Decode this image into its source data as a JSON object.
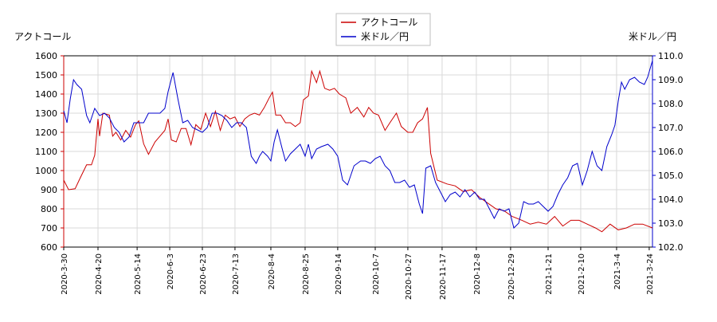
{
  "chart_data": {
    "type": "line",
    "left_axis_label": "アクトコール",
    "right_axis_label": "米ドル／円",
    "legend_position": "top-center",
    "grid": true,
    "colors": {
      "series1": "#cc0000",
      "series2": "#0000cc"
    },
    "left_ylim": [
      600,
      1600
    ],
    "left_yticks": [
      "600",
      "700",
      "800",
      "900",
      "1000",
      "1100",
      "1200",
      "1300",
      "1400",
      "1500",
      "1600"
    ],
    "right_ylim": [
      102.0,
      110.0
    ],
    "right_yticks": [
      "102.0",
      "103.0",
      "104.0",
      "105.0",
      "106.0",
      "107.0",
      "108.0",
      "109.0",
      "110.0"
    ],
    "xlim": [
      "2020-03-30",
      "2021-03-26"
    ],
    "x_ticks": [
      "2020-3-30",
      "2020-4-20",
      "2020-5-14",
      "2020-6-3",
      "2020-6-23",
      "2020-7-13",
      "2020-8-4",
      "2020-8-25",
      "2020-9-14",
      "2020-10-7",
      "2020-10-27",
      "2020-11-17",
      "2020-12-8",
      "2020-12-29",
      "2021-1-21",
      "2021-2-10",
      "2021-3-4",
      "2021-3-24"
    ],
    "series": [
      {
        "name": "アクトコール",
        "axis": "left",
        "points": [
          [
            "2020-03-30",
            950
          ],
          [
            "2020-04-02",
            900
          ],
          [
            "2020-04-06",
            905
          ],
          [
            "2020-04-09",
            960
          ],
          [
            "2020-04-13",
            1030
          ],
          [
            "2020-04-16",
            1030
          ],
          [
            "2020-04-18",
            1080
          ],
          [
            "2020-04-20",
            1270
          ],
          [
            "2020-04-21",
            1180
          ],
          [
            "2020-04-23",
            1300
          ],
          [
            "2020-04-27",
            1290
          ],
          [
            "2020-04-29",
            1180
          ],
          [
            "2020-05-01",
            1200
          ],
          [
            "2020-05-04",
            1160
          ],
          [
            "2020-05-07",
            1210
          ],
          [
            "2020-05-10",
            1175
          ],
          [
            "2020-05-13",
            1240
          ],
          [
            "2020-05-15",
            1260
          ],
          [
            "2020-05-18",
            1140
          ],
          [
            "2020-05-21",
            1085
          ],
          [
            "2020-05-25",
            1150
          ],
          [
            "2020-05-28",
            1180
          ],
          [
            "2020-05-31",
            1210
          ],
          [
            "2020-06-02",
            1270
          ],
          [
            "2020-06-04",
            1160
          ],
          [
            "2020-06-07",
            1150
          ],
          [
            "2020-06-10",
            1220
          ],
          [
            "2020-06-13",
            1220
          ],
          [
            "2020-06-16",
            1135
          ],
          [
            "2020-06-19",
            1240
          ],
          [
            "2020-06-22",
            1215
          ],
          [
            "2020-06-25",
            1300
          ],
          [
            "2020-06-28",
            1230
          ],
          [
            "2020-07-01",
            1310
          ],
          [
            "2020-07-04",
            1210
          ],
          [
            "2020-07-07",
            1290
          ],
          [
            "2020-07-10",
            1270
          ],
          [
            "2020-07-13",
            1280
          ],
          [
            "2020-07-16",
            1230
          ],
          [
            "2020-07-19",
            1270
          ],
          [
            "2020-07-22",
            1290
          ],
          [
            "2020-07-25",
            1300
          ],
          [
            "2020-07-28",
            1290
          ],
          [
            "2020-07-31",
            1330
          ],
          [
            "2020-08-03",
            1380
          ],
          [
            "2020-08-05",
            1410
          ],
          [
            "2020-08-07",
            1290
          ],
          [
            "2020-08-10",
            1290
          ],
          [
            "2020-08-13",
            1250
          ],
          [
            "2020-08-16",
            1250
          ],
          [
            "2020-08-19",
            1230
          ],
          [
            "2020-08-22",
            1250
          ],
          [
            "2020-08-24",
            1370
          ],
          [
            "2020-08-27",
            1390
          ],
          [
            "2020-08-29",
            1520
          ],
          [
            "2020-09-01",
            1460
          ],
          [
            "2020-09-03",
            1520
          ],
          [
            "2020-09-06",
            1430
          ],
          [
            "2020-09-09",
            1420
          ],
          [
            "2020-09-12",
            1430
          ],
          [
            "2020-09-15",
            1400
          ],
          [
            "2020-09-19",
            1380
          ],
          [
            "2020-09-22",
            1300
          ],
          [
            "2020-09-26",
            1330
          ],
          [
            "2020-09-30",
            1280
          ],
          [
            "2020-10-03",
            1330
          ],
          [
            "2020-10-06",
            1300
          ],
          [
            "2020-10-09",
            1290
          ],
          [
            "2020-10-13",
            1210
          ],
          [
            "2020-10-16",
            1250
          ],
          [
            "2020-10-20",
            1300
          ],
          [
            "2020-10-23",
            1230
          ],
          [
            "2020-10-27",
            1200
          ],
          [
            "2020-10-30",
            1200
          ],
          [
            "2020-11-02",
            1250
          ],
          [
            "2020-11-05",
            1270
          ],
          [
            "2020-11-08",
            1330
          ],
          [
            "2020-11-10",
            1090
          ],
          [
            "2020-11-14",
            950
          ],
          [
            "2020-11-20",
            930
          ],
          [
            "2020-11-25",
            920
          ],
          [
            "2020-11-30",
            890
          ],
          [
            "2020-12-05",
            900
          ],
          [
            "2020-12-10",
            860
          ],
          [
            "2020-12-15",
            830
          ],
          [
            "2020-12-20",
            800
          ],
          [
            "2020-12-25",
            790
          ],
          [
            "2020-12-30",
            760
          ],
          [
            "2021-01-05",
            740
          ],
          [
            "2021-01-10",
            720
          ],
          [
            "2021-01-15",
            730
          ],
          [
            "2021-01-20",
            720
          ],
          [
            "2021-01-25",
            760
          ],
          [
            "2021-01-30",
            710
          ],
          [
            "2021-02-04",
            740
          ],
          [
            "2021-02-09",
            740
          ],
          [
            "2021-02-14",
            720
          ],
          [
            "2021-02-19",
            700
          ],
          [
            "2021-02-23",
            680
          ],
          [
            "2021-02-28",
            720
          ],
          [
            "2021-03-05",
            690
          ],
          [
            "2021-03-10",
            700
          ],
          [
            "2021-03-15",
            720
          ],
          [
            "2021-03-20",
            720
          ],
          [
            "2021-03-26",
            700
          ]
        ]
      },
      {
        "name": "米ドル／円",
        "axis": "right",
        "points": [
          [
            "2020-03-30",
            107.7
          ],
          [
            "2020-04-01",
            107.2
          ],
          [
            "2020-04-03",
            108.2
          ],
          [
            "2020-04-05",
            109.0
          ],
          [
            "2020-04-07",
            108.8
          ],
          [
            "2020-04-10",
            108.6
          ],
          [
            "2020-04-13",
            107.5
          ],
          [
            "2020-04-15",
            107.2
          ],
          [
            "2020-04-18",
            107.8
          ],
          [
            "2020-04-21",
            107.5
          ],
          [
            "2020-04-24",
            107.6
          ],
          [
            "2020-04-27",
            107.4
          ],
          [
            "2020-04-30",
            107.0
          ],
          [
            "2020-05-03",
            106.8
          ],
          [
            "2020-05-06",
            106.4
          ],
          [
            "2020-05-09",
            106.6
          ],
          [
            "2020-05-12",
            107.2
          ],
          [
            "2020-05-15",
            107.2
          ],
          [
            "2020-05-18",
            107.2
          ],
          [
            "2020-05-21",
            107.6
          ],
          [
            "2020-05-25",
            107.6
          ],
          [
            "2020-05-28",
            107.6
          ],
          [
            "2020-05-31",
            107.8
          ],
          [
            "2020-06-02",
            108.5
          ],
          [
            "2020-06-05",
            109.3
          ],
          [
            "2020-06-08",
            108.2
          ],
          [
            "2020-06-11",
            107.2
          ],
          [
            "2020-06-14",
            107.3
          ],
          [
            "2020-06-17",
            107.0
          ],
          [
            "2020-06-20",
            106.9
          ],
          [
            "2020-06-23",
            106.8
          ],
          [
            "2020-06-26",
            107.0
          ],
          [
            "2020-06-29",
            107.6
          ],
          [
            "2020-07-02",
            107.6
          ],
          [
            "2020-07-05",
            107.5
          ],
          [
            "2020-07-08",
            107.3
          ],
          [
            "2020-07-11",
            107.0
          ],
          [
            "2020-07-14",
            107.2
          ],
          [
            "2020-07-17",
            107.2
          ],
          [
            "2020-07-20",
            107.0
          ],
          [
            "2020-07-23",
            105.8
          ],
          [
            "2020-07-26",
            105.5
          ],
          [
            "2020-07-28",
            105.8
          ],
          [
            "2020-07-30",
            106.0
          ],
          [
            "2020-08-02",
            105.8
          ],
          [
            "2020-08-04",
            105.6
          ],
          [
            "2020-08-06",
            106.4
          ],
          [
            "2020-08-08",
            106.9
          ],
          [
            "2020-08-11",
            106.1
          ],
          [
            "2020-08-13",
            105.6
          ],
          [
            "2020-08-16",
            105.9
          ],
          [
            "2020-08-19",
            106.1
          ],
          [
            "2020-08-22",
            106.3
          ],
          [
            "2020-08-25",
            105.8
          ],
          [
            "2020-08-27",
            106.3
          ],
          [
            "2020-08-29",
            105.7
          ],
          [
            "2020-09-01",
            106.1
          ],
          [
            "2020-09-04",
            106.2
          ],
          [
            "2020-09-08",
            106.3
          ],
          [
            "2020-09-11",
            106.1
          ],
          [
            "2020-09-14",
            105.8
          ],
          [
            "2020-09-17",
            104.8
          ],
          [
            "2020-09-20",
            104.6
          ],
          [
            "2020-09-24",
            105.4
          ],
          [
            "2020-09-28",
            105.6
          ],
          [
            "2020-10-01",
            105.6
          ],
          [
            "2020-10-04",
            105.5
          ],
          [
            "2020-10-07",
            105.7
          ],
          [
            "2020-10-10",
            105.8
          ],
          [
            "2020-10-13",
            105.4
          ],
          [
            "2020-10-16",
            105.2
          ],
          [
            "2020-10-19",
            104.7
          ],
          [
            "2020-10-22",
            104.7
          ],
          [
            "2020-10-25",
            104.8
          ],
          [
            "2020-10-28",
            104.5
          ],
          [
            "2020-10-31",
            104.6
          ],
          [
            "2020-11-03",
            103.8
          ],
          [
            "2020-11-05",
            103.4
          ],
          [
            "2020-11-07",
            105.3
          ],
          [
            "2020-11-10",
            105.4
          ],
          [
            "2020-11-13",
            104.7
          ],
          [
            "2020-11-16",
            104.3
          ],
          [
            "2020-11-19",
            103.9
          ],
          [
            "2020-11-22",
            104.2
          ],
          [
            "2020-11-25",
            104.3
          ],
          [
            "2020-11-28",
            104.1
          ],
          [
            "2020-12-01",
            104.4
          ],
          [
            "2020-12-04",
            104.1
          ],
          [
            "2020-12-07",
            104.3
          ],
          [
            "2020-12-10",
            104.0
          ],
          [
            "2020-12-13",
            104.0
          ],
          [
            "2020-12-16",
            103.6
          ],
          [
            "2020-12-19",
            103.2
          ],
          [
            "2020-12-22",
            103.6
          ],
          [
            "2020-12-25",
            103.5
          ],
          [
            "2020-12-28",
            103.6
          ],
          [
            "2020-12-31",
            102.8
          ],
          [
            "2021-01-03",
            103.0
          ],
          [
            "2021-01-06",
            103.9
          ],
          [
            "2021-01-09",
            103.8
          ],
          [
            "2021-01-12",
            103.8
          ],
          [
            "2021-01-15",
            103.9
          ],
          [
            "2021-01-18",
            103.7
          ],
          [
            "2021-01-21",
            103.5
          ],
          [
            "2021-01-24",
            103.7
          ],
          [
            "2021-01-27",
            104.2
          ],
          [
            "2021-01-30",
            104.6
          ],
          [
            "2021-02-02",
            104.9
          ],
          [
            "2021-02-05",
            105.4
          ],
          [
            "2021-02-08",
            105.5
          ],
          [
            "2021-02-11",
            104.6
          ],
          [
            "2021-02-14",
            105.2
          ],
          [
            "2021-02-17",
            106.0
          ],
          [
            "2021-02-20",
            105.4
          ],
          [
            "2021-02-23",
            105.2
          ],
          [
            "2021-02-26",
            106.2
          ],
          [
            "2021-03-01",
            106.7
          ],
          [
            "2021-03-03",
            107.1
          ],
          [
            "2021-03-05",
            108.1
          ],
          [
            "2021-03-07",
            108.9
          ],
          [
            "2021-03-09",
            108.6
          ],
          [
            "2021-03-12",
            109.0
          ],
          [
            "2021-03-15",
            109.1
          ],
          [
            "2021-03-18",
            108.9
          ],
          [
            "2021-03-21",
            108.8
          ],
          [
            "2021-03-23",
            109.1
          ],
          [
            "2021-03-26",
            109.8
          ]
        ]
      }
    ]
  }
}
